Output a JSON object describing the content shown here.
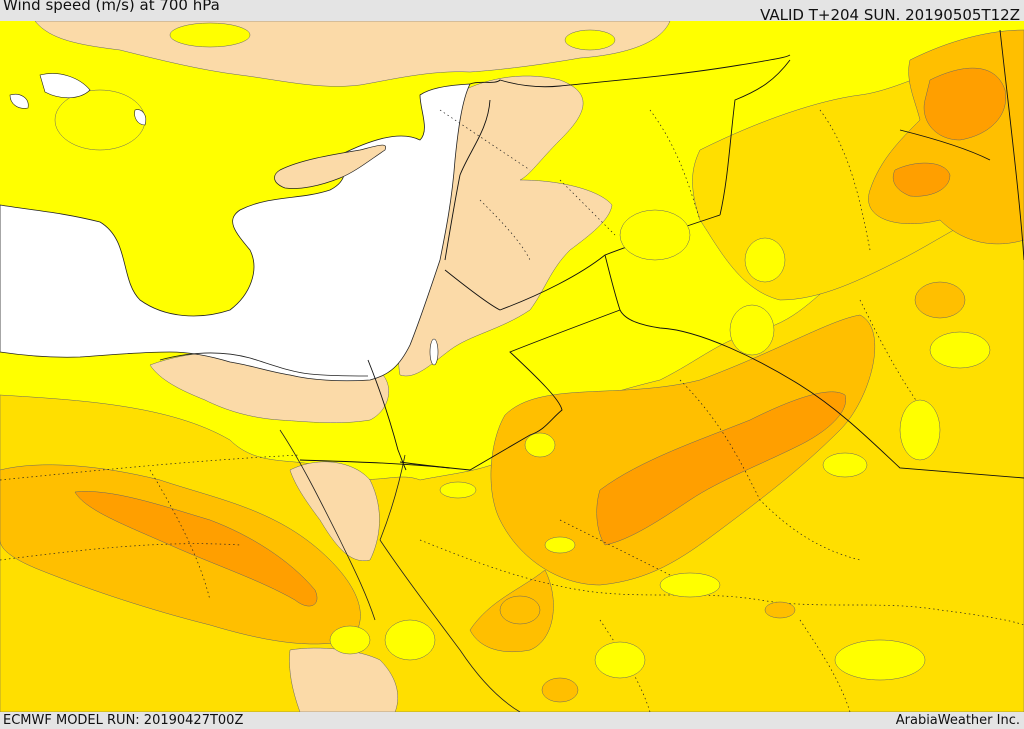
{
  "header": {
    "title": "Wind speed (m/s) at 700 hPa",
    "valid": "VALID T+204 SUN. 20190505T12Z"
  },
  "footer": {
    "model_run": "ECMWF MODEL RUN: 20190427T00Z",
    "credit": "ArabiaWeather Inc."
  },
  "colors": {
    "sea": "#ffffff",
    "speed_lowest": "#fbdaa8",
    "speed_low": "#ffff00",
    "speed_mid": "#ffdf00",
    "speed_high": "#ffbf00",
    "speed_highest": "#ff9f00",
    "border": "#000000"
  },
  "map": {
    "region": "Eastern Mediterranean and Middle East",
    "layers": [
      "wind-speed-fill",
      "coastlines",
      "country-borders",
      "province-borders"
    ]
  }
}
